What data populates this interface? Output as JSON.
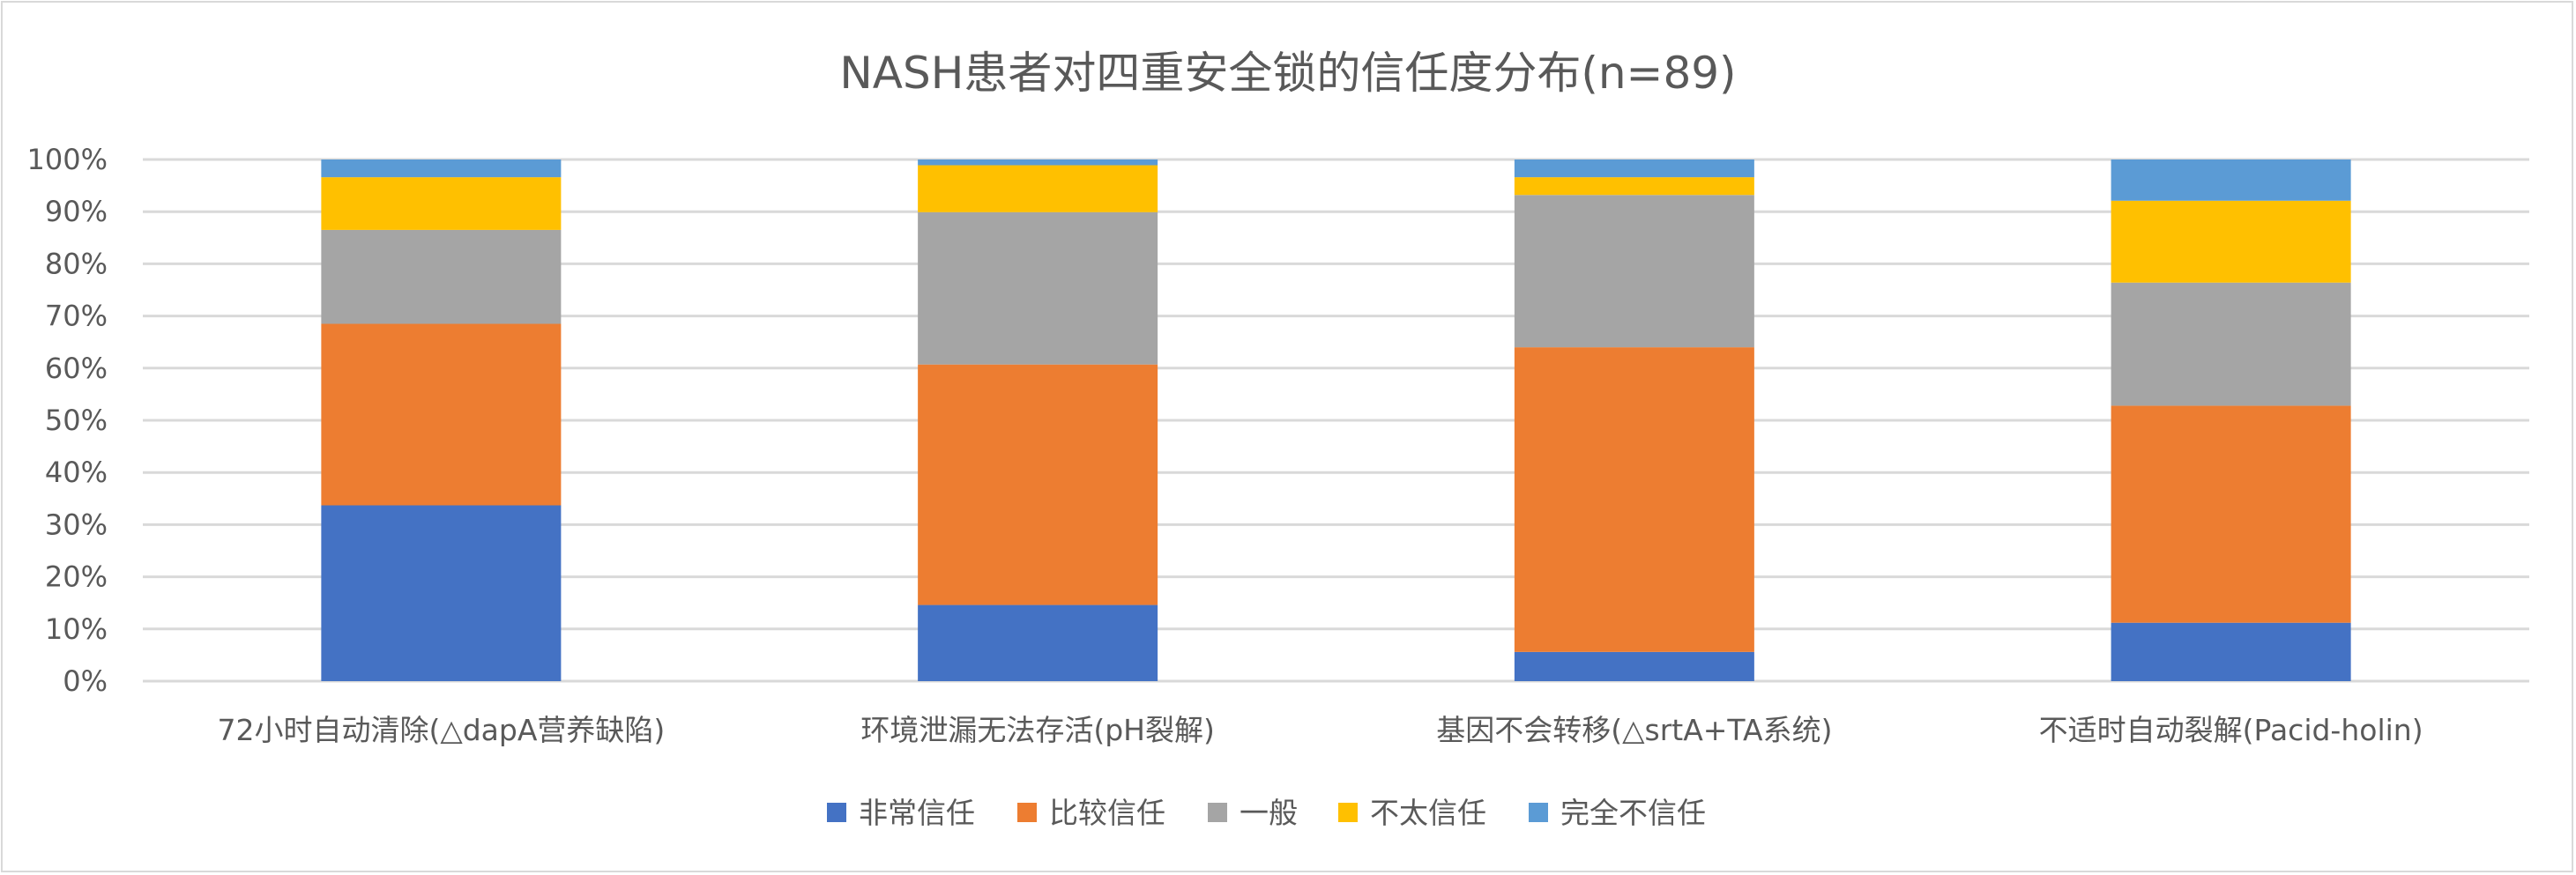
{
  "chart_data": {
    "type": "bar",
    "stacked": "percent",
    "title": "NASH患者对四重安全锁的信任度分布(n=89)",
    "xlabel": "",
    "ylabel": "",
    "ylim": [
      0,
      100
    ],
    "y_ticks": [
      "0%",
      "10%",
      "20%",
      "30%",
      "40%",
      "50%",
      "60%",
      "70%",
      "80%",
      "90%",
      "100%"
    ],
    "grid": true,
    "legend_position": "bottom",
    "categories": [
      "72小时自动清除(△dapA营养缺陷)",
      "环境泄漏无法存活(pH裂解)",
      "基因不会转移(△srtA+TA系统)",
      "不适时自动裂解(Pacid-holin)"
    ],
    "series": [
      {
        "name": "非常信任",
        "color": "#4472C4",
        "values": [
          33.7,
          14.6,
          5.6,
          11.2
        ]
      },
      {
        "name": "比较信任",
        "color": "#ED7D31",
        "values": [
          34.8,
          46.1,
          58.4,
          41.6
        ]
      },
      {
        "name": "一般",
        "color": "#A5A5A5",
        "values": [
          18.0,
          29.2,
          29.2,
          23.6
        ]
      },
      {
        "name": "不太信任",
        "color": "#FFC000",
        "values": [
          10.1,
          9.0,
          3.4,
          15.7
        ]
      },
      {
        "name": "完全不信任",
        "color": "#5B9BD5",
        "values": [
          3.4,
          1.1,
          3.4,
          7.9
        ]
      }
    ]
  }
}
